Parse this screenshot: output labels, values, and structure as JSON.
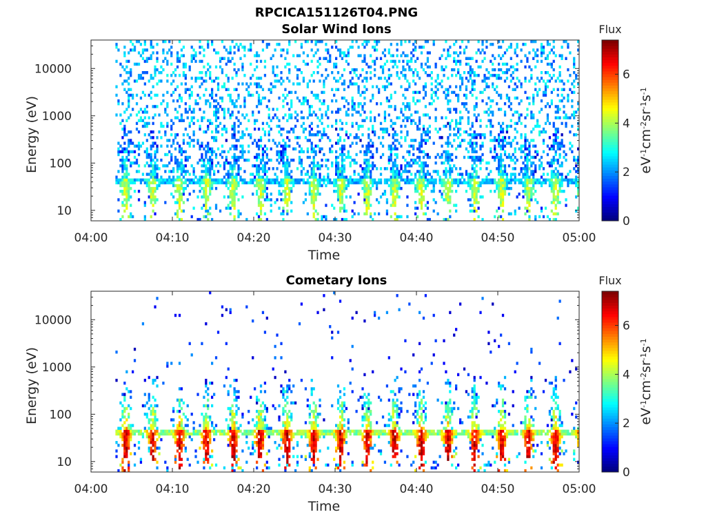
{
  "page_title": "RPCICA151126T04.PNG",
  "chart_data": [
    {
      "type": "heatmap",
      "title": "Solar Wind Ions",
      "xlabel": "Time",
      "ylabel": "Energy (eV)",
      "x_ticks": [
        "04:00",
        "04:10",
        "04:20",
        "04:30",
        "04:40",
        "04:50",
        "05:00"
      ],
      "x_range": [
        "04:00",
        "05:00"
      ],
      "y_scale": "log",
      "y_ticks": [
        10,
        100,
        1000,
        10000
      ],
      "y_tick_labels": [
        "10",
        "100",
        "1000",
        "10000"
      ],
      "y_range": [
        6,
        40000
      ],
      "data_start": "04:03",
      "colorbar": {
        "title": "Flux",
        "units": "eV-1cm-2sr-1s-1",
        "range": [
          0,
          7.4
        ],
        "ticks": [
          "0",
          "2",
          "4",
          "6"
        ]
      },
      "band_flux_peak": 4.2,
      "scatter_flux_mean": 2.2,
      "scatter_density": 0.22,
      "band_top_eV": 45
    },
    {
      "type": "heatmap",
      "title": "Cometary Ions",
      "xlabel": "Time",
      "ylabel": "Energy (eV)",
      "x_ticks": [
        "04:00",
        "04:10",
        "04:20",
        "04:30",
        "04:40",
        "04:50",
        "05:00"
      ],
      "x_range": [
        "04:00",
        "05:00"
      ],
      "y_scale": "log",
      "y_ticks": [
        10,
        100,
        1000,
        10000
      ],
      "y_tick_labels": [
        "10",
        "100",
        "1000",
        "10000"
      ],
      "y_range": [
        6,
        40000
      ],
      "data_start": "04:03",
      "colorbar": {
        "title": "Flux",
        "units": "eV-1cm-2sr-1s-1",
        "range": [
          0,
          7.4
        ],
        "ticks": [
          "0",
          "2",
          "4",
          "6"
        ]
      },
      "band_flux_peak": 6.8,
      "scatter_flux_mean": 1.2,
      "scatter_density": 0.025,
      "band_top_eV": 45
    }
  ]
}
